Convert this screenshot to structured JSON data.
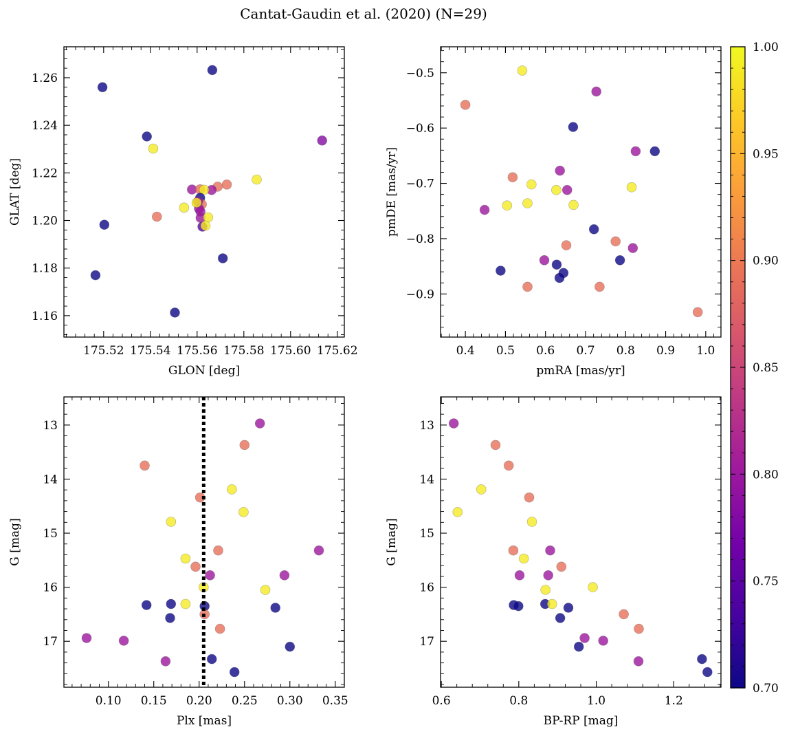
{
  "figure": {
    "title": "Cantat-Gaudin et al. (2020) (N=29)"
  },
  "colorbar": {
    "min": 0.7,
    "max": 1.0,
    "ticks": [
      "0.70",
      "0.75",
      "0.80",
      "0.85",
      "0.90",
      "0.95",
      "1.00"
    ],
    "colormap": "plasma",
    "colormap_stops": [
      "#0d0887",
      "#46039f",
      "#7201a8",
      "#9c179e",
      "#bd3786",
      "#d8576b",
      "#ed7953",
      "#fb9f3a",
      "#fdca26",
      "#f0f921"
    ]
  },
  "chart_data": [
    {
      "type": "scatter",
      "id": "p1",
      "xlabel": "GLON [deg]",
      "ylabel": "GLAT [deg]",
      "xlim": [
        175.503,
        175.623
      ],
      "ylim": [
        1.151,
        1.273
      ],
      "xticks": [
        175.52,
        175.54,
        175.56,
        175.58,
        175.6,
        175.62
      ],
      "xtick_labels": [
        "175.52",
        "175.54",
        "175.56",
        "175.58",
        "175.60",
        "175.62"
      ],
      "yticks": [
        1.16,
        1.18,
        1.2,
        1.22,
        1.24,
        1.26
      ],
      "ytick_labels": [
        "1.16",
        "1.18",
        "1.20",
        "1.22",
        "1.24",
        "1.26"
      ],
      "points": [
        {
          "x": 175.5195,
          "y": 1.256,
          "c": 0.7
        },
        {
          "x": 175.5665,
          "y": 1.2632,
          "c": 0.7
        },
        {
          "x": 175.5385,
          "y": 1.2353,
          "c": 0.7
        },
        {
          "x": 175.5412,
          "y": 1.2302,
          "c": 0.99
        },
        {
          "x": 175.6135,
          "y": 1.2336,
          "c": 0.78
        },
        {
          "x": 175.5203,
          "y": 1.1982,
          "c": 0.7
        },
        {
          "x": 175.5165,
          "y": 1.177,
          "c": 0.7
        },
        {
          "x": 175.5505,
          "y": 1.1613,
          "c": 0.7
        },
        {
          "x": 175.571,
          "y": 1.1841,
          "c": 0.7
        },
        {
          "x": 175.5428,
          "y": 1.2016,
          "c": 0.89
        },
        {
          "x": 175.5855,
          "y": 1.2172,
          "c": 0.99
        },
        {
          "x": 175.5727,
          "y": 1.2151,
          "c": 0.89
        },
        {
          "x": 175.5688,
          "y": 1.2142,
          "c": 0.89
        },
        {
          "x": 175.5662,
          "y": 1.2128,
          "c": 0.8
        },
        {
          "x": 175.5578,
          "y": 1.213,
          "c": 0.8
        },
        {
          "x": 175.5613,
          "y": 1.2131,
          "c": 0.89
        },
        {
          "x": 175.563,
          "y": 1.2129,
          "c": 0.99
        },
        {
          "x": 175.5544,
          "y": 1.2054,
          "c": 0.99
        },
        {
          "x": 175.5613,
          "y": 1.2095,
          "c": 0.7
        },
        {
          "x": 175.5601,
          "y": 1.2073,
          "c": 0.99
        },
        {
          "x": 175.562,
          "y": 1.2068,
          "c": 0.89
        },
        {
          "x": 175.5608,
          "y": 1.205,
          "c": 0.8
        },
        {
          "x": 175.5614,
          "y": 1.2038,
          "c": 0.8
        },
        {
          "x": 175.5615,
          "y": 1.2011,
          "c": 0.8
        },
        {
          "x": 175.5647,
          "y": 1.2013,
          "c": 0.99
        },
        {
          "x": 175.5623,
          "y": 1.1974,
          "c": 0.75
        },
        {
          "x": 175.5636,
          "y": 1.1978,
          "c": 0.99
        },
        {
          "x": 175.5604,
          "y": 1.208,
          "c": 0.8
        },
        {
          "x": 175.5598,
          "y": 1.2075,
          "c": 0.99
        }
      ]
    },
    {
      "type": "scatter",
      "id": "p2",
      "xlabel": "pmRA [mas/yr]",
      "ylabel": "pmDE [mas/yr]",
      "xlim": [
        0.338,
        1.038
      ],
      "ylim": [
        -0.978,
        -0.453
      ],
      "xticks": [
        0.4,
        0.5,
        0.6,
        0.7,
        0.8,
        0.9,
        1.0
      ],
      "xtick_labels": [
        "0.4",
        "0.5",
        "0.6",
        "0.7",
        "0.8",
        "0.9",
        "1.0"
      ],
      "yticks": [
        -0.9,
        -0.8,
        -0.7,
        -0.6,
        -0.5
      ],
      "ytick_labels": [
        "−0.9",
        "−0.8",
        "−0.7",
        "−0.6",
        "−0.5"
      ],
      "points": [
        {
          "x": 0.542,
          "y": -0.496,
          "c": 0.99
        },
        {
          "x": 0.4,
          "y": -0.558,
          "c": 0.89
        },
        {
          "x": 0.727,
          "y": -0.534,
          "c": 0.8
        },
        {
          "x": 0.669,
          "y": -0.598,
          "c": 0.7
        },
        {
          "x": 0.825,
          "y": -0.642,
          "c": 0.8
        },
        {
          "x": 0.873,
          "y": -0.642,
          "c": 0.7
        },
        {
          "x": 0.636,
          "y": -0.677,
          "c": 0.8
        },
        {
          "x": 0.518,
          "y": -0.689,
          "c": 0.89
        },
        {
          "x": 0.565,
          "y": -0.702,
          "c": 0.99
        },
        {
          "x": 0.627,
          "y": -0.712,
          "c": 0.99
        },
        {
          "x": 0.654,
          "y": -0.712,
          "c": 0.8
        },
        {
          "x": 0.815,
          "y": -0.707,
          "c": 0.99
        },
        {
          "x": 0.448,
          "y": -0.748,
          "c": 0.8
        },
        {
          "x": 0.504,
          "y": -0.74,
          "c": 0.99
        },
        {
          "x": 0.555,
          "y": -0.736,
          "c": 0.99
        },
        {
          "x": 0.67,
          "y": -0.739,
          "c": 0.99
        },
        {
          "x": 0.721,
          "y": -0.783,
          "c": 0.7
        },
        {
          "x": 0.775,
          "y": -0.805,
          "c": 0.89
        },
        {
          "x": 0.652,
          "y": -0.812,
          "c": 0.89
        },
        {
          "x": 0.818,
          "y": -0.817,
          "c": 0.8
        },
        {
          "x": 0.597,
          "y": -0.839,
          "c": 0.8
        },
        {
          "x": 0.786,
          "y": -0.839,
          "c": 0.7
        },
        {
          "x": 0.628,
          "y": -0.847,
          "c": 0.7
        },
        {
          "x": 0.488,
          "y": -0.858,
          "c": 0.7
        },
        {
          "x": 0.645,
          "y": -0.862,
          "c": 0.7
        },
        {
          "x": 0.635,
          "y": -0.871,
          "c": 0.7
        },
        {
          "x": 0.555,
          "y": -0.887,
          "c": 0.89
        },
        {
          "x": 0.735,
          "y": -0.887,
          "c": 0.89
        },
        {
          "x": 0.98,
          "y": -0.933,
          "c": 0.89
        }
      ]
    },
    {
      "type": "scatter",
      "id": "p3",
      "xlabel": "Plx [mas]",
      "ylabel": "G [mag]",
      "xlim": [
        0.051,
        0.36
      ],
      "ylim": [
        17.85,
        12.48
      ],
      "xticks": [
        0.1,
        0.15,
        0.2,
        0.25,
        0.3,
        0.35
      ],
      "xtick_labels": [
        "0.10",
        "0.15",
        "0.20",
        "0.25",
        "0.30",
        "0.35"
      ],
      "yticks": [
        13,
        14,
        15,
        16,
        17
      ],
      "ytick_labels": [
        "13",
        "14",
        "15",
        "16",
        "17"
      ],
      "vline": 0.205,
      "points": [
        {
          "x": 0.267,
          "y": 12.97,
          "c": 0.8
        },
        {
          "x": 0.25,
          "y": 13.37,
          "c": 0.89
        },
        {
          "x": 0.14,
          "y": 13.75,
          "c": 0.89
        },
        {
          "x": 0.236,
          "y": 14.19,
          "c": 0.99
        },
        {
          "x": 0.201,
          "y": 14.34,
          "c": 0.89
        },
        {
          "x": 0.249,
          "y": 14.61,
          "c": 0.99
        },
        {
          "x": 0.169,
          "y": 14.79,
          "c": 0.99
        },
        {
          "x": 0.221,
          "y": 15.32,
          "c": 0.89
        },
        {
          "x": 0.332,
          "y": 15.32,
          "c": 0.8
        },
        {
          "x": 0.185,
          "y": 15.47,
          "c": 0.99
        },
        {
          "x": 0.196,
          "y": 15.62,
          "c": 0.89
        },
        {
          "x": 0.212,
          "y": 15.78,
          "c": 0.8
        },
        {
          "x": 0.294,
          "y": 15.78,
          "c": 0.8
        },
        {
          "x": 0.205,
          "y": 16.0,
          "c": 0.99
        },
        {
          "x": 0.273,
          "y": 16.05,
          "c": 0.99
        },
        {
          "x": 0.142,
          "y": 16.33,
          "c": 0.7
        },
        {
          "x": 0.169,
          "y": 16.31,
          "c": 0.7
        },
        {
          "x": 0.185,
          "y": 16.31,
          "c": 0.99
        },
        {
          "x": 0.206,
          "y": 16.35,
          "c": 0.7
        },
        {
          "x": 0.284,
          "y": 16.38,
          "c": 0.7
        },
        {
          "x": 0.206,
          "y": 16.5,
          "c": 0.89
        },
        {
          "x": 0.168,
          "y": 16.57,
          "c": 0.7
        },
        {
          "x": 0.223,
          "y": 16.77,
          "c": 0.89
        },
        {
          "x": 0.076,
          "y": 16.94,
          "c": 0.8
        },
        {
          "x": 0.117,
          "y": 16.99,
          "c": 0.8
        },
        {
          "x": 0.3,
          "y": 17.1,
          "c": 0.7
        },
        {
          "x": 0.214,
          "y": 17.33,
          "c": 0.7
        },
        {
          "x": 0.163,
          "y": 17.37,
          "c": 0.8
        },
        {
          "x": 0.239,
          "y": 17.57,
          "c": 0.7
        }
      ]
    },
    {
      "type": "scatter",
      "id": "p4",
      "xlabel": "BP-RP [mag]",
      "ylabel": "G [mag]",
      "xlim": [
        0.598,
        1.322
      ],
      "ylim": [
        17.85,
        12.48
      ],
      "xticks": [
        0.6,
        0.8,
        1.0,
        1.2
      ],
      "xtick_labels": [
        "0.6",
        "0.8",
        "1.0",
        "1.2"
      ],
      "yticks": [
        13,
        14,
        15,
        16,
        17
      ],
      "ytick_labels": [
        "13",
        "14",
        "15",
        "16",
        "17"
      ],
      "points": [
        {
          "x": 0.632,
          "y": 12.97,
          "c": 0.8
        },
        {
          "x": 0.74,
          "y": 13.37,
          "c": 0.89
        },
        {
          "x": 0.774,
          "y": 13.75,
          "c": 0.89
        },
        {
          "x": 0.703,
          "y": 14.19,
          "c": 0.99
        },
        {
          "x": 0.827,
          "y": 14.34,
          "c": 0.89
        },
        {
          "x": 0.642,
          "y": 14.61,
          "c": 0.99
        },
        {
          "x": 0.834,
          "y": 14.79,
          "c": 0.99
        },
        {
          "x": 0.786,
          "y": 15.32,
          "c": 0.89
        },
        {
          "x": 0.881,
          "y": 15.32,
          "c": 0.8
        },
        {
          "x": 0.813,
          "y": 15.47,
          "c": 0.99
        },
        {
          "x": 0.91,
          "y": 15.62,
          "c": 0.89
        },
        {
          "x": 0.802,
          "y": 15.78,
          "c": 0.8
        },
        {
          "x": 0.876,
          "y": 15.78,
          "c": 0.8
        },
        {
          "x": 0.991,
          "y": 16.0,
          "c": 0.99
        },
        {
          "x": 0.869,
          "y": 16.05,
          "c": 0.99
        },
        {
          "x": 0.787,
          "y": 16.33,
          "c": 0.7
        },
        {
          "x": 0.799,
          "y": 16.35,
          "c": 0.7
        },
        {
          "x": 0.868,
          "y": 16.31,
          "c": 0.7
        },
        {
          "x": 0.886,
          "y": 16.31,
          "c": 0.99
        },
        {
          "x": 0.928,
          "y": 16.38,
          "c": 0.7
        },
        {
          "x": 1.071,
          "y": 16.5,
          "c": 0.89
        },
        {
          "x": 0.907,
          "y": 16.57,
          "c": 0.7
        },
        {
          "x": 1.11,
          "y": 16.77,
          "c": 0.89
        },
        {
          "x": 0.97,
          "y": 16.94,
          "c": 0.8
        },
        {
          "x": 1.018,
          "y": 16.99,
          "c": 0.8
        },
        {
          "x": 0.955,
          "y": 17.1,
          "c": 0.7
        },
        {
          "x": 1.273,
          "y": 17.33,
          "c": 0.7
        },
        {
          "x": 1.109,
          "y": 17.37,
          "c": 0.8
        },
        {
          "x": 1.287,
          "y": 17.57,
          "c": 0.7
        }
      ]
    }
  ]
}
